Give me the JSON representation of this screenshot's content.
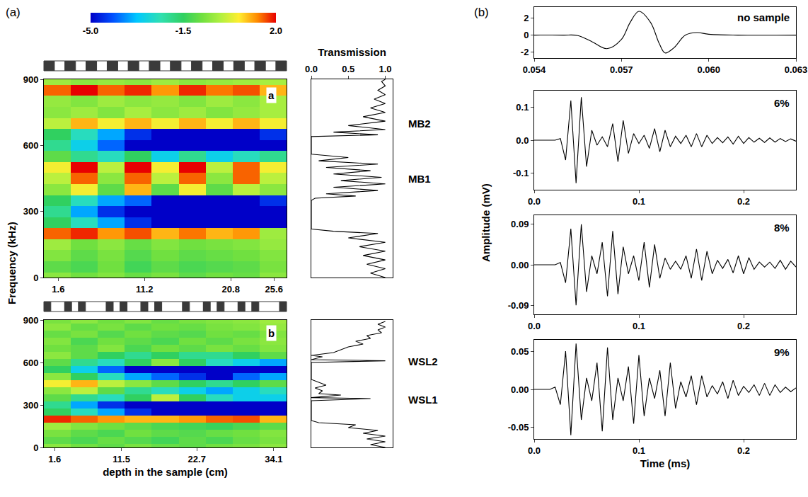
{
  "chart_data": [
    {
      "type": "heatmap",
      "panel_label": "(a)",
      "label": "a",
      "y_label": "Frequency (kHz)",
      "x": [
        1.5,
        4.5,
        7.5,
        10.5,
        13.5,
        16.5,
        19.5,
        22.5,
        25.5
      ],
      "y": [
        0,
        50,
        100,
        150,
        200,
        250,
        300,
        350,
        400,
        450,
        500,
        550,
        600,
        650,
        700,
        750,
        800,
        850,
        900
      ],
      "z": [
        [
          -0.5,
          -0.8,
          -0.6,
          -0.9,
          -0.7,
          -1.0,
          -0.8,
          -0.9,
          -0.5
        ],
        [
          -1.0,
          -1.2,
          -0.8,
          -1.3,
          -1.0,
          -1.2,
          -1.1,
          -1.0,
          -0.7
        ],
        [
          -0.6,
          -1.0,
          -0.7,
          -1.1,
          -0.8,
          -1.0,
          -0.9,
          -0.8,
          -0.6
        ],
        [
          -0.3,
          -0.8,
          -0.5,
          -0.9,
          -0.6,
          -0.8,
          -0.7,
          -0.6,
          -0.4
        ],
        [
          1.5,
          1.8,
          1.2,
          1.6,
          1.0,
          1.4,
          1.0,
          1.2,
          -0.3
        ],
        [
          -1.5,
          -2.5,
          -3.5,
          -4.5,
          -5.0,
          -5.0,
          -5.0,
          -5.0,
          -5.0
        ],
        [
          -2.0,
          -3.5,
          -4.5,
          -5.0,
          -5.0,
          -5.0,
          -5.0,
          -5.0,
          -5.0
        ],
        [
          -1.5,
          -2.5,
          -3.5,
          -4.0,
          -5.0,
          -5.0,
          -5.0,
          -5.0,
          -4.5
        ],
        [
          -0.5,
          0.5,
          -1.0,
          1.0,
          -1.0,
          0.5,
          -1.0,
          0.0,
          -0.5
        ],
        [
          0.0,
          1.5,
          -0.5,
          1.5,
          0.0,
          1.5,
          -0.5,
          1.5,
          0.0
        ],
        [
          0.5,
          2.0,
          0.0,
          2.0,
          0.5,
          2.0,
          0.0,
          1.5,
          0.5
        ],
        [
          -1.0,
          -2.0,
          -2.5,
          -1.5,
          -3.0,
          -2.0,
          -3.0,
          -2.5,
          -2.0
        ],
        [
          -2.0,
          -3.0,
          -4.0,
          -5.0,
          -5.0,
          -5.0,
          -5.0,
          -5.0,
          -5.0
        ],
        [
          -1.5,
          -2.5,
          -3.5,
          -4.5,
          -5.0,
          -5.0,
          -5.0,
          -5.0,
          -4.5
        ],
        [
          0.0,
          1.0,
          0.5,
          1.0,
          0.5,
          1.0,
          0.5,
          1.0,
          0.5
        ],
        [
          -0.5,
          -0.3,
          -0.6,
          -0.2,
          -0.5,
          -0.3,
          -0.6,
          -0.4,
          -0.2
        ],
        [
          -0.4,
          -0.6,
          -0.3,
          -0.5,
          -0.4,
          -0.6,
          -0.3,
          -0.5,
          -0.2
        ],
        [
          1.5,
          2.0,
          1.5,
          1.8,
          1.2,
          1.8,
          1.4,
          1.6,
          1.0
        ],
        [
          -0.3,
          -0.5,
          -0.4,
          -0.5,
          -0.3,
          -0.5,
          -0.4,
          -0.3,
          -0.2
        ]
      ],
      "xlim": [
        0,
        27
      ],
      "xticks": [
        1.6,
        11.2,
        20.8,
        25.6
      ],
      "ylim": [
        0,
        900
      ],
      "yticks": [
        0,
        300,
        600,
        900
      ],
      "colorbar": {
        "range": [
          -5,
          2
        ],
        "ticks": [
          {
            "value": -5,
            "label": "-5.0"
          },
          {
            "value": -1.5,
            "label": "-1.5"
          },
          {
            "value": 2,
            "label": "2.0"
          }
        ]
      }
    },
    {
      "type": "line",
      "x_label": "Transmission",
      "color": "#000000",
      "tick_labels": "x",
      "x": [
        1.0,
        0.8,
        1.0,
        0.75,
        1.0,
        0.7,
        1.0,
        0.65,
        1.0,
        0.5,
        0.9,
        0.3,
        0.0,
        0.0,
        0.0,
        0.0,
        0.05,
        0.6,
        0.2,
        0.9,
        0.3,
        1.0,
        0.4,
        0.95,
        0.3,
        0.8,
        0.2,
        0.9,
        0.1,
        0.5,
        0.0,
        0.0,
        0.0,
        0.9,
        0.3,
        1.0,
        0.5,
        1.0,
        0.7,
        1.0,
        0.8,
        1.0,
        0.85,
        1.0,
        0.9,
        1.0,
        0.95,
        1.0
      ],
      "y": [
        0,
        20,
        40,
        60,
        80,
        100,
        120,
        140,
        160,
        180,
        200,
        210,
        220,
        240,
        300,
        350,
        360,
        370,
        380,
        395,
        410,
        425,
        440,
        455,
        470,
        485,
        500,
        515,
        530,
        545,
        560,
        600,
        640,
        648,
        660,
        672,
        690,
        710,
        730,
        750,
        770,
        790,
        810,
        830,
        850,
        870,
        890,
        900
      ],
      "xlim": [
        0,
        1.1
      ],
      "xticks": [
        {
          "value": 0,
          "label": "0.0"
        },
        0.5,
        {
          "value": 1,
          "label": "1.0"
        }
      ],
      "ylim": [
        0,
        900
      ],
      "annotations": [
        {
          "text": "MB2",
          "y": 700
        },
        {
          "text": "MB1",
          "y": 450
        }
      ]
    },
    {
      "type": "heatmap",
      "label": "b",
      "x_label": "depth in the sample (cm)",
      "x": [
        2,
        6,
        10,
        14,
        18,
        22,
        26,
        30,
        34
      ],
      "y": [
        0,
        50,
        100,
        150,
        200,
        250,
        300,
        350,
        400,
        450,
        500,
        550,
        600,
        650,
        700,
        750,
        800,
        850,
        900
      ],
      "z": [
        [
          -0.5,
          -0.8,
          -1.0,
          -0.7,
          -0.9,
          -1.0,
          -0.8,
          -0.7,
          -0.5
        ],
        [
          -1.0,
          -1.2,
          -0.9,
          -1.1,
          -1.3,
          -1.0,
          -1.2,
          -0.9,
          -0.7
        ],
        [
          -0.7,
          -1.0,
          -1.2,
          -0.8,
          -1.0,
          -1.1,
          -0.9,
          -0.8,
          -0.6
        ],
        [
          -0.3,
          -0.6,
          -0.8,
          -1.0,
          -1.2,
          -1.3,
          -1.4,
          -1.2,
          -1.0
        ],
        [
          1.8,
          1.5,
          1.2,
          1.0,
          1.0,
          1.2,
          1.5,
          1.6,
          1.0
        ],
        [
          -1.5,
          -2.5,
          -3.5,
          -4.5,
          -5.0,
          -5.0,
          -5.0,
          -5.0,
          -5.0
        ],
        [
          -2.0,
          -3.5,
          -4.5,
          -5.0,
          -5.0,
          -5.0,
          -5.0,
          -5.0,
          -5.0
        ],
        [
          -1.0,
          -2.0,
          -2.5,
          -1.5,
          0.0,
          -1.5,
          -2.5,
          -3.0,
          -3.0
        ],
        [
          -0.5,
          0.0,
          -1.0,
          -2.0,
          -2.5,
          -3.0,
          -3.5,
          -3.0,
          -2.5
        ],
        [
          0.5,
          1.0,
          0.0,
          -0.5,
          -1.0,
          -1.5,
          -2.0,
          -1.5,
          -1.0
        ],
        [
          -0.5,
          -1.5,
          -2.5,
          -3.5,
          -4.0,
          -4.5,
          -5.0,
          -4.0,
          -3.5
        ],
        [
          -1.5,
          -3.0,
          -4.0,
          -5.0,
          -5.0,
          -5.0,
          -5.0,
          -5.0,
          -5.0
        ],
        [
          -1.0,
          -2.0,
          -2.5,
          -1.5,
          -0.5,
          -1.5,
          -2.5,
          -3.0,
          -3.5
        ],
        [
          -0.5,
          -1.0,
          -1.5,
          -2.0,
          -1.5,
          -2.0,
          -2.0,
          -1.5,
          -1.0
        ],
        [
          -0.8,
          -1.0,
          -0.6,
          -1.2,
          -0.8,
          -1.0,
          -0.7,
          -0.9,
          -0.6
        ],
        [
          -0.6,
          -1.2,
          -0.8,
          -1.0,
          -1.2,
          -0.8,
          -1.0,
          -0.7,
          -0.5
        ],
        [
          -0.9,
          -0.7,
          -1.1,
          -0.8,
          -1.0,
          -1.1,
          -0.8,
          -0.9,
          -0.6
        ],
        [
          -0.5,
          -0.9,
          -0.7,
          -1.0,
          -0.8,
          -0.9,
          -0.7,
          -0.6,
          -0.4
        ],
        [
          -0.7,
          -0.5,
          -0.8,
          -0.6,
          -0.9,
          -0.7,
          -0.6,
          -0.5,
          -0.3
        ]
      ],
      "xlim": [
        0,
        36
      ],
      "xticks": [
        1.6,
        11.5,
        22.7,
        34.1
      ],
      "ylim": [
        0,
        900
      ],
      "yticks": [
        0,
        300,
        600,
        900
      ]
    },
    {
      "type": "line",
      "color": "#000000",
      "tick_labels": false,
      "x": [
        1.0,
        0.8,
        1.0,
        0.75,
        1.0,
        0.7,
        0.9,
        0.5,
        0.6,
        0.1,
        0.0,
        0.0,
        0.0,
        0.8,
        0.0,
        0.4,
        0.1,
        0.15,
        0.05,
        0.2,
        0.1,
        0.0,
        0.0,
        0.0,
        1.0,
        0.0,
        0.15,
        0.0,
        0.3,
        0.4,
        0.5,
        0.7,
        0.6,
        0.8,
        0.75,
        0.95,
        0.9,
        1.0,
        0.9,
        1.0
      ],
      "y": [
        0,
        20,
        40,
        60,
        80,
        100,
        120,
        140,
        160,
        175,
        190,
        300,
        330,
        345,
        352,
        370,
        380,
        400,
        420,
        440,
        460,
        480,
        560,
        600,
        612,
        620,
        640,
        650,
        670,
        690,
        710,
        730,
        750,
        770,
        790,
        810,
        830,
        850,
        870,
        890
      ],
      "xlim": [
        0,
        1.1
      ],
      "ylim": [
        0,
        900
      ],
      "annotations": [
        {
          "text": "WSL2",
          "y": 610
        },
        {
          "text": "WSL1",
          "y": 340
        }
      ]
    },
    {
      "type": "line",
      "panel_label": "(b)",
      "label": "no sample",
      "y_label": "Amplitude (mV)",
      "color": "#000000",
      "x": [
        0.054,
        0.055,
        0.0555,
        0.056,
        0.0565,
        0.057,
        0.0573,
        0.0576,
        0.058,
        0.0583,
        0.0585,
        0.0588,
        0.0592,
        0.0596,
        0.06,
        0.061,
        0.063
      ],
      "y": [
        0,
        0,
        -0.05,
        -0.8,
        -1.6,
        -0.5,
        1.5,
        2.8,
        1.5,
        -1.0,
        -2.1,
        -1.5,
        0.0,
        0.3,
        0.1,
        0.0,
        0.0
      ],
      "xlim": [
        0.054,
        0.063
      ],
      "xticks": [
        0.054,
        0.057,
        {
          "value": 0.06,
          "label": "0.060"
        },
        0.063
      ],
      "ylim": [
        -2.7,
        3.3
      ],
      "yticks": [
        -2,
        0,
        2
      ]
    },
    {
      "type": "line",
      "label": "6%",
      "color": "#000000",
      "x": [
        0,
        0.005,
        0.01,
        0.015,
        0.02,
        0.025,
        0.03,
        0.035,
        0.04,
        0.045,
        0.05,
        0.055,
        0.06,
        0.065,
        0.07,
        0.075,
        0.08,
        0.085,
        0.09,
        0.095,
        0.1,
        0.105,
        0.11,
        0.115,
        0.12,
        0.125,
        0.13,
        0.135,
        0.14,
        0.145,
        0.15,
        0.155,
        0.16,
        0.165,
        0.17,
        0.175,
        0.18,
        0.185,
        0.19,
        0.195,
        0.2,
        0.205,
        0.21,
        0.215,
        0.22,
        0.225,
        0.23,
        0.235,
        0.24,
        0.245,
        0.25
      ],
      "y": [
        0,
        0,
        0,
        0,
        0,
        0.005,
        -0.06,
        0.12,
        -0.13,
        0.13,
        -0.08,
        0.03,
        -0.015,
        0.01,
        -0.02,
        0.05,
        -0.065,
        0.06,
        -0.04,
        0.02,
        -0.01,
        0.015,
        -0.025,
        0.035,
        -0.035,
        0.03,
        -0.02,
        0.012,
        -0.01,
        0.015,
        -0.02,
        0.02,
        -0.02,
        0.015,
        -0.01,
        0.008,
        -0.008,
        0.01,
        -0.012,
        0.012,
        -0.01,
        0.008,
        -0.006,
        0.006,
        -0.007,
        0.007,
        -0.006,
        0.005,
        -0.004,
        0.004,
        -0.003
      ],
      "xlim": [
        0,
        0.25
      ],
      "xticks": [
        {
          "value": 0,
          "label": "0.0"
        },
        0.1,
        0.2
      ],
      "ylim": [
        -0.15,
        0.15
      ],
      "yticks": [
        -0.1,
        {
          "value": 0,
          "label": "0.0"
        },
        0.1
      ]
    },
    {
      "type": "line",
      "label": "8%",
      "color": "#000000",
      "x": [
        0,
        0.005,
        0.01,
        0.015,
        0.02,
        0.025,
        0.03,
        0.035,
        0.04,
        0.045,
        0.05,
        0.055,
        0.06,
        0.065,
        0.07,
        0.075,
        0.08,
        0.085,
        0.09,
        0.095,
        0.1,
        0.105,
        0.11,
        0.115,
        0.12,
        0.125,
        0.13,
        0.135,
        0.14,
        0.145,
        0.15,
        0.155,
        0.16,
        0.165,
        0.17,
        0.175,
        0.18,
        0.185,
        0.19,
        0.195,
        0.2,
        0.205,
        0.21,
        0.215,
        0.22,
        0.225,
        0.23,
        0.235,
        0.24,
        0.245,
        0.25
      ],
      "y": [
        0,
        0,
        0,
        0,
        0,
        0.005,
        -0.04,
        0.08,
        -0.09,
        0.09,
        -0.06,
        0.02,
        -0.02,
        0.05,
        -0.07,
        0.075,
        -0.065,
        0.04,
        -0.02,
        0.02,
        -0.035,
        0.05,
        -0.05,
        0.045,
        -0.03,
        0.015,
        -0.01,
        0.008,
        -0.01,
        0.02,
        -0.03,
        0.035,
        -0.035,
        0.03,
        -0.02,
        0.01,
        -0.008,
        0.012,
        -0.018,
        0.02,
        -0.02,
        0.016,
        -0.01,
        0.006,
        -0.005,
        0.006,
        -0.008,
        0.01,
        -0.01,
        0.008,
        -0.005
      ],
      "xlim": [
        0,
        0.25
      ],
      "xticks": [
        {
          "value": 0,
          "label": "0.0"
        },
        0.1,
        0.2
      ],
      "ylim": [
        -0.11,
        0.11
      ],
      "yticks": [
        -0.09,
        {
          "value": 0,
          "label": "0.00"
        },
        0.09
      ]
    },
    {
      "type": "line",
      "label": "9%",
      "x_label": "Time (ms)",
      "color": "#000000",
      "x": [
        0,
        0.005,
        0.01,
        0.015,
        0.02,
        0.025,
        0.03,
        0.035,
        0.04,
        0.045,
        0.05,
        0.055,
        0.06,
        0.065,
        0.07,
        0.075,
        0.08,
        0.085,
        0.09,
        0.095,
        0.1,
        0.105,
        0.11,
        0.115,
        0.12,
        0.125,
        0.13,
        0.135,
        0.14,
        0.145,
        0.15,
        0.155,
        0.16,
        0.165,
        0.17,
        0.175,
        0.18,
        0.185,
        0.19,
        0.195,
        0.2,
        0.205,
        0.21,
        0.215,
        0.22,
        0.225,
        0.23,
        0.235,
        0.24,
        0.245,
        0.25
      ],
      "y": [
        0,
        0,
        0,
        0,
        0.003,
        -0.02,
        0.05,
        -0.06,
        0.06,
        -0.04,
        0.015,
        -0.015,
        0.035,
        -0.055,
        0.055,
        -0.04,
        0.015,
        -0.015,
        0.03,
        -0.045,
        0.045,
        -0.035,
        0.015,
        -0.012,
        0.025,
        -0.035,
        0.035,
        -0.025,
        0.01,
        -0.01,
        0.018,
        -0.02,
        0.018,
        -0.01,
        0.005,
        -0.006,
        0.01,
        -0.012,
        0.012,
        -0.008,
        0.004,
        -0.004,
        0.006,
        -0.008,
        0.008,
        -0.008,
        0.006,
        -0.004,
        0.003,
        -0.003,
        0.002
      ],
      "xlim": [
        0,
        0.25
      ],
      "xticks": [
        {
          "value": 0,
          "label": "0.0"
        },
        0.1,
        0.2
      ],
      "ylim": [
        -0.065,
        0.065
      ],
      "yticks": [
        -0.05,
        {
          "value": 0,
          "label": "0.00"
        },
        0.05
      ]
    }
  ]
}
